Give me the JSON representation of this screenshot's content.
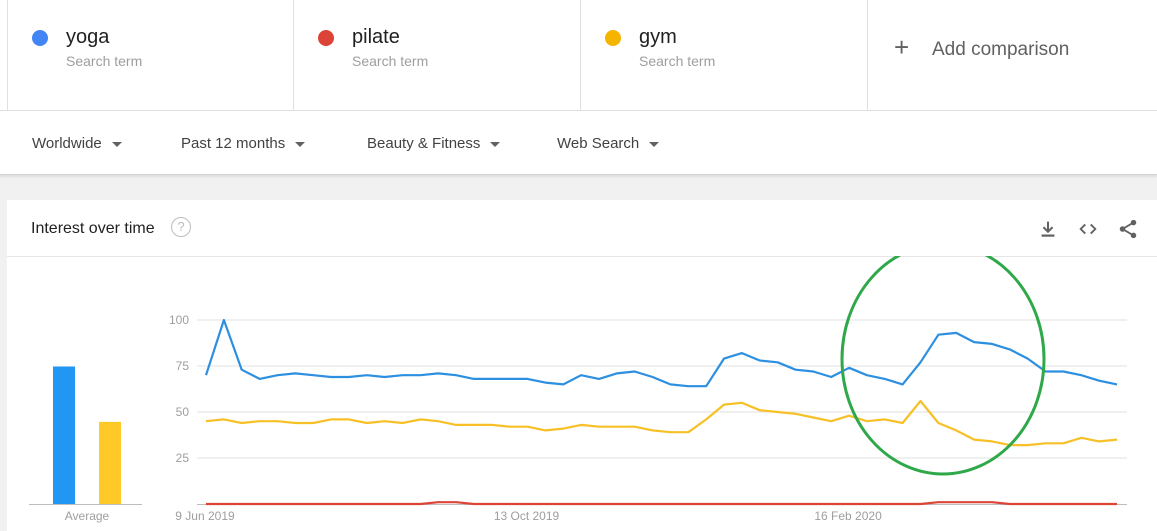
{
  "terms": [
    {
      "name": "yoga",
      "sub": "Search term",
      "color": "#4285f4"
    },
    {
      "name": "pilate",
      "sub": "Search term",
      "color": "#db4437"
    },
    {
      "name": "gym",
      "sub": "Search term",
      "color": "#f4b400"
    }
  ],
  "add_comparison": "Add comparison",
  "filters": {
    "region": "Worldwide",
    "time": "Past 12 months",
    "category": "Beauty & Fitness",
    "property": "Web Search"
  },
  "card": {
    "title": "Interest over time",
    "help": "?"
  },
  "chart_data": {
    "type": "line",
    "y_ticks": [
      25,
      50,
      75,
      100
    ],
    "ylim": [
      0,
      100
    ],
    "x_tick_labels": [
      "9 Jun 2019",
      "13 Oct 2019",
      "16 Feb 2020"
    ],
    "x_tick_index": [
      0,
      18,
      36
    ],
    "average_label": "Average",
    "averages": [
      {
        "name": "yoga",
        "value": 72,
        "color": "#2196f3"
      },
      {
        "name": "gym",
        "value": 43,
        "color": "#ffca28"
      }
    ],
    "series": [
      {
        "name": "yoga",
        "color": "#2d8fe0",
        "values": [
          70,
          100,
          73,
          68,
          70,
          71,
          70,
          69,
          69,
          70,
          69,
          70,
          70,
          71,
          70,
          68,
          68,
          68,
          68,
          66,
          65,
          70,
          68,
          71,
          72,
          69,
          65,
          64,
          64,
          79,
          82,
          78,
          77,
          73,
          72,
          69,
          74,
          70,
          68,
          65,
          77,
          92,
          93,
          88,
          87,
          84,
          79,
          72,
          72,
          70,
          67,
          65
        ]
      },
      {
        "name": "pilate",
        "color": "#db4437",
        "values": [
          0,
          0,
          0,
          0,
          0,
          0,
          0,
          0,
          0,
          0,
          0,
          0,
          0,
          1,
          1,
          0,
          0,
          0,
          0,
          0,
          0,
          0,
          0,
          0,
          0,
          0,
          0,
          0,
          0,
          0,
          0,
          0,
          0,
          0,
          0,
          0,
          0,
          0,
          0,
          0,
          0,
          1,
          1,
          1,
          1,
          0,
          0,
          0,
          0,
          0,
          0,
          0
        ]
      },
      {
        "name": "gym",
        "color": "#f6c026",
        "values": [
          45,
          46,
          44,
          45,
          45,
          44,
          44,
          46,
          46,
          44,
          45,
          44,
          46,
          45,
          43,
          43,
          43,
          42,
          42,
          40,
          41,
          43,
          42,
          42,
          42,
          40,
          39,
          39,
          46,
          54,
          55,
          51,
          50,
          49,
          47,
          45,
          48,
          45,
          46,
          44,
          56,
          44,
          40,
          35,
          34,
          32,
          32,
          33,
          33,
          36,
          34,
          35
        ]
      }
    ]
  },
  "annotation": {
    "shape": "circle",
    "color": "#2fa84a"
  }
}
